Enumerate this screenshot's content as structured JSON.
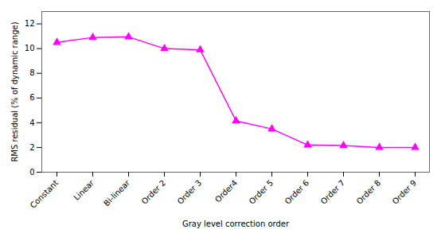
{
  "chart_data": {
    "type": "line",
    "xlabel": "Gray level correction order",
    "ylabel": "RMS residual (% of dynamic range)",
    "categories": [
      "Constant",
      "Linear",
      "Bi-linear",
      "Order 2",
      "Order 3",
      "Order4",
      "Order 5",
      "Order 6",
      "Order 7",
      "Order 8",
      "Order 9"
    ],
    "values": [
      10.5,
      10.9,
      10.95,
      10.0,
      9.9,
      4.15,
      3.5,
      2.2,
      2.15,
      2.0,
      2.0
    ],
    "color": "#FF00FF",
    "marker": "triangle",
    "ylim": [
      0,
      13
    ],
    "yticks": [
      0,
      2,
      4,
      6,
      8,
      10,
      12
    ],
    "grid": false
  }
}
